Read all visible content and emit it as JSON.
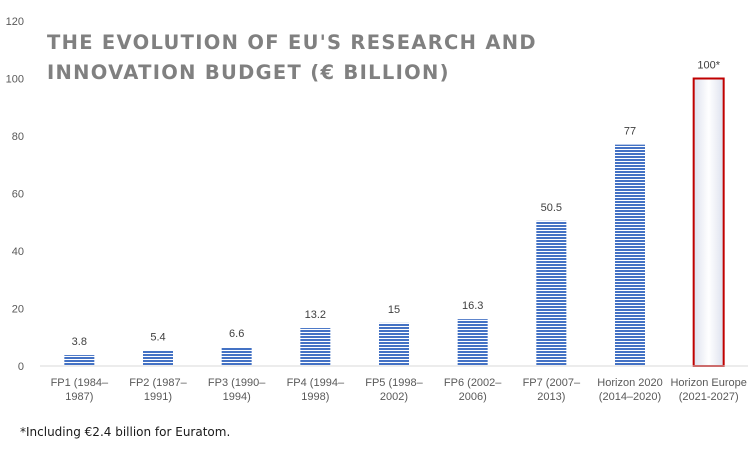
{
  "chart_data": {
    "type": "bar",
    "title": "THE EVOLUTION OF EU'S RESEARCH AND\nINNOVATION BUDGET (€ BILLION)",
    "categories": [
      "FP1 (1984– 1987)",
      "FP2 (1987– 1991)",
      "FP3 (1990– 1994)",
      "FP4 (1994– 1998)",
      "FP5 (1998– 2002)",
      "FP6 (2002– 2006)",
      "FP7 (2007– 2013)",
      "Horizon 2020 (2014–2020)",
      "Horizon Europe (2021-2027)"
    ],
    "category_lines": [
      [
        "FP1 (1984–",
        "1987)"
      ],
      [
        "FP2 (1987–",
        "1991)"
      ],
      [
        "FP3 (1990–",
        "1994)"
      ],
      [
        "FP4 (1994–",
        "1998)"
      ],
      [
        "FP5 (1998–",
        "2002)"
      ],
      [
        "FP6 (2002–",
        "2006)"
      ],
      [
        "FP7 (2007–",
        "2013)"
      ],
      [
        "Horizon 2020",
        "(2014–2020)"
      ],
      [
        "Horizon Europe",
        "(2021-2027)"
      ]
    ],
    "values": [
      3.8,
      5.4,
      6.6,
      13.2,
      15,
      16.3,
      50.5,
      77,
      100
    ],
    "data_labels": [
      "3.8",
      "5.4",
      "6.6",
      "13.2",
      "15",
      "16.3",
      "50.5",
      "77",
      "100*"
    ],
    "ylim": [
      0,
      120
    ],
    "yticks": [
      0,
      20,
      40,
      60,
      80,
      100,
      120
    ],
    "xlabel": "",
    "ylabel": "",
    "grid": false,
    "legend": "none",
    "colors": {
      "bar_fill": "#4472c4",
      "bar_stripe": "#ffffff",
      "highlight_border": "#c00000",
      "highlight_fill": "#ffffff",
      "highlight_shade": "#dde1ee",
      "axis_line": "#d9d9d9",
      "tick_label": "#595959",
      "data_label": "#404040"
    }
  },
  "footnote": "*Including €2.4 billion for Euratom."
}
